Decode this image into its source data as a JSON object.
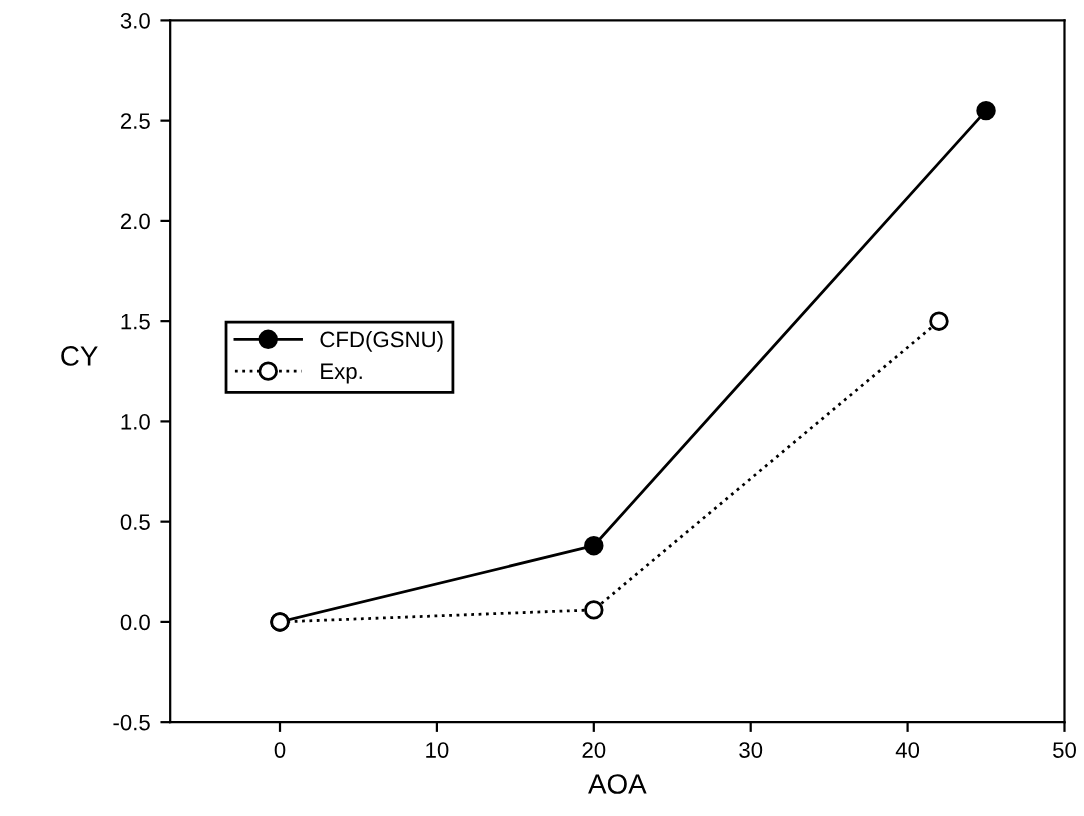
{
  "chart_data": {
    "type": "line",
    "xlabel": "AOA",
    "ylabel": "CY",
    "series": [
      {
        "name": "CFD(GSNU)",
        "color": "#000000",
        "line_style": "solid",
        "x": [
          0,
          20,
          45
        ],
        "values": [
          0,
          0.38,
          2.55
        ]
      },
      {
        "name": "Exp.",
        "color": "#000000",
        "line_style": "dotted",
        "x": [
          0,
          20,
          42
        ],
        "values": [
          0,
          0.06,
          1.5
        ]
      }
    ],
    "marker": "circle",
    "xlim": [
      -7,
      50
    ],
    "xticks": [
      0,
      10,
      20,
      30,
      40,
      50
    ],
    "ylim": [
      -0.5,
      3.0
    ],
    "yticks": [
      {
        "value": -0.5,
        "label": "-0.5"
      },
      {
        "value": 0,
        "label": "0.0"
      },
      {
        "value": 0.5,
        "label": "0.5"
      },
      {
        "value": 1.0,
        "label": "1.0"
      },
      {
        "value": 1.5,
        "label": "1.5"
      },
      {
        "value": 2.0,
        "label": "2.0"
      },
      {
        "value": 2.5,
        "label": "2.5"
      },
      {
        "value": 3.0,
        "label": "3.0"
      }
    ],
    "grid": false,
    "legend": "left"
  }
}
